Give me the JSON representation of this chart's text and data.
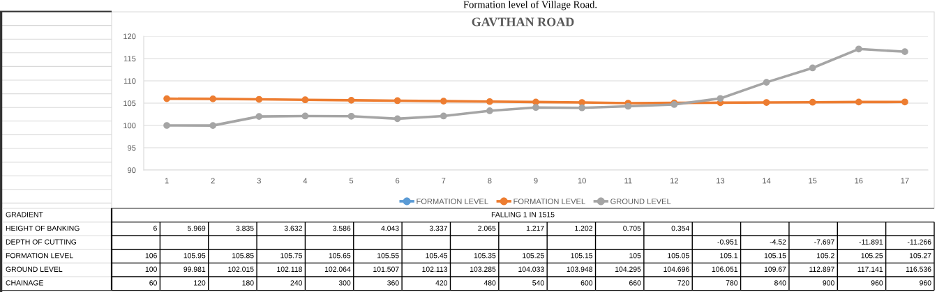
{
  "chart_data": {
    "type": "line",
    "title": "GAVTHAN ROAD",
    "annotations": [
      "Formation level of Village Road.",
      "GRADIENT",
      "FALLING 1 IN 1515"
    ],
    "categories": [
      "1",
      "2",
      "3",
      "4",
      "5",
      "6",
      "7",
      "8",
      "9",
      "10",
      "11",
      "12",
      "13",
      "14",
      "15",
      "16",
      "17"
    ],
    "series": [
      {
        "name": "FORMATION LEVEL",
        "color": "#5b9bd5",
        "values": [
          null,
          null,
          null,
          null,
          null,
          null,
          null,
          null,
          null,
          null,
          null,
          null,
          null,
          null,
          null,
          null,
          null
        ]
      },
      {
        "name": "HEIGHT OF BANKING",
        "type": "other",
        "values": [
          null,
          null,
          null,
          null,
          null,
          null,
          null,
          null,
          null,
          null,
          null,
          null,
          null,
          null,
          null,
          null,
          null
        ],
        "value_labels": [
          "6",
          "5.969",
          "3.835",
          "3.632",
          "3.586",
          "4.043",
          "3.337",
          "2.065",
          "1.217",
          "1.202",
          "0.705",
          "0.354",
          null,
          null,
          null,
          null,
          null
        ]
      },
      {
        "name": "DEPTH OF CUTTING",
        "type": "other",
        "values": [
          null,
          null,
          null,
          null,
          null,
          null,
          null,
          null,
          null,
          null,
          null,
          null,
          null,
          null,
          null,
          null,
          null
        ],
        "value_labels": [
          null,
          null,
          null,
          null,
          null,
          null,
          null,
          null,
          null,
          null,
          null,
          null,
          "-0.951",
          "-4.52",
          "-7.697",
          "-11.891",
          "-11.266"
        ]
      },
      {
        "name": "FORMATION LEVEL",
        "color": "#ed7d31",
        "values": [
          106,
          105.95,
          105.85,
          105.75,
          105.65,
          105.55,
          105.45,
          105.35,
          105.25,
          105.15,
          105,
          105.05,
          105.1,
          105.15,
          105.2,
          105.25,
          105.27
        ]
      },
      {
        "name": "GROUND LEVEL",
        "color": "#a5a5a5",
        "values": [
          100,
          99.981,
          102.015,
          102.118,
          102.064,
          101.507,
          102.113,
          103.285,
          104.033,
          103.948,
          104.295,
          104.696,
          106.051,
          109.67,
          112.897,
          117.141,
          116.536
        ]
      },
      {
        "name": "CHAINAGE",
        "type": "other",
        "values": [
          null,
          null,
          null,
          null,
          null,
          null,
          null,
          null,
          null,
          null,
          null,
          null,
          null,
          null,
          null,
          null,
          null
        ],
        "value_labels": [
          "60",
          "120",
          "180",
          "240",
          "300",
          "360",
          "420",
          "480",
          "540",
          "600",
          "660",
          "720",
          "780",
          "840",
          "900",
          "960",
          "960"
        ]
      }
    ],
    "ylim": [
      90,
      120
    ],
    "yticks": [
      90,
      95,
      100,
      105,
      110,
      115,
      120
    ],
    "grid": "y",
    "legend": "bottom",
    "marker": "circle",
    "line_style": "solid",
    "data_labels": true
  }
}
